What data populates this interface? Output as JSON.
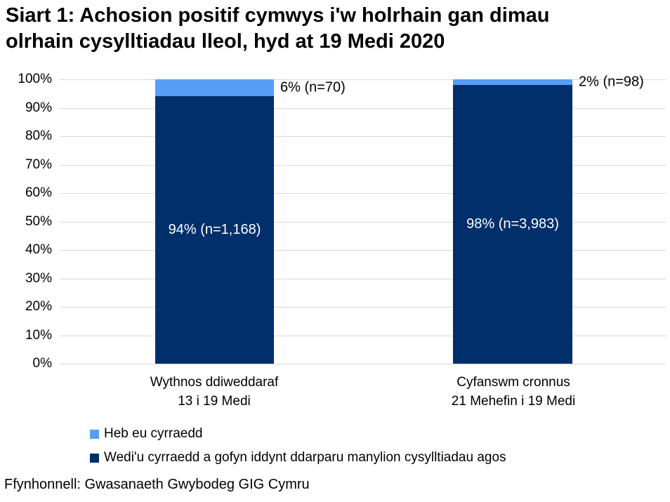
{
  "title": {
    "line1": "Siart 1: Achosion positif cymwys i'w holrhain gan dimau",
    "line2": "olrhain cysylltiadau lleol, hyd at 19 Medi 2020"
  },
  "y_axis": {
    "ticks": [
      "100%",
      "90%",
      "80%",
      "70%",
      "60%",
      "50%",
      "40%",
      "30%",
      "20%",
      "10%",
      "0%"
    ]
  },
  "bars": [
    {
      "label_line1": "Wythnos ddiweddaraf",
      "label_line2": "13 i 19 Medi",
      "inside_label": "94% (n=1,168)",
      "outside_label": "6% (n=70)",
      "light_pct": 6,
      "dark_pct": 94
    },
    {
      "label_line1": "Cyfanswm cronnus",
      "label_line2": "21 Mehefin i 19 Medi",
      "inside_label": "98% (n=3,983)",
      "outside_label": "2% (n=98)",
      "light_pct": 2,
      "dark_pct": 98
    }
  ],
  "legend": {
    "items": [
      {
        "label": "Heb eu cyrraedd",
        "colorKey": "light"
      },
      {
        "label": "Wedi'u cyrraedd a gofyn iddynt ddarparu manylion cysylltiadau agos",
        "colorKey": "dark"
      }
    ]
  },
  "source": "Ffynhonnell: Gwasanaeth Gwybodeg GIG Cymru",
  "colors": {
    "dark_blue": "#002F6C",
    "light_blue": "#569EF8",
    "gridline": "#D9D9D9"
  },
  "chart_data": {
    "type": "bar",
    "subtype": "stacked-percent",
    "title": "Siart 1: Achosion positif cymwys i'w holrhain gan dimau olrhain cysylltiadau lleol, hyd at 19 Medi 2020",
    "categories": [
      "Wythnos ddiweddaraf 13 i 19 Medi",
      "Cyfanswm cronnus 21 Mehefin i 19 Medi"
    ],
    "series": [
      {
        "name": "Wedi'u cyrraedd a gofyn iddynt ddarparu manylion cysylltiadau agos",
        "values_pct": [
          94,
          98
        ],
        "counts": [
          1168,
          3983
        ],
        "color": "#002F6C"
      },
      {
        "name": "Heb eu cyrraedd",
        "values_pct": [
          6,
          2
        ],
        "counts": [
          70,
          98
        ],
        "color": "#569EF8"
      }
    ],
    "data_labels": [
      "94% (n=1,168)",
      "98% (n=3,983)",
      "6% (n=70)",
      "2% (n=98)"
    ],
    "xlabel": "",
    "ylabel": "",
    "ylim": [
      0,
      100
    ],
    "ytick_step_pct": 10,
    "grid": "horizontal",
    "legend_position": "bottom-left",
    "source": "Ffynhonnell: Gwasanaeth Gwybodeg GIG Cymru"
  }
}
